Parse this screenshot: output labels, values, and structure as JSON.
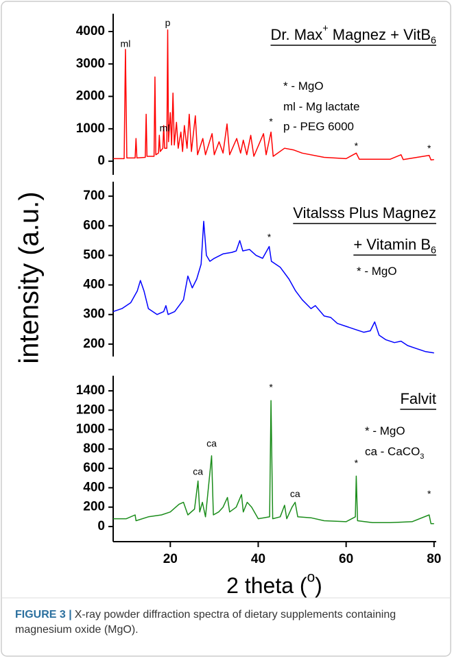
{
  "chart_data": [
    {
      "type": "line",
      "xlim": [
        7,
        80.5
      ],
      "ylim": [
        -420,
        4550
      ],
      "yticks": [
        0,
        1000,
        2000,
        3000,
        4000
      ],
      "title_lines": [
        [
          {
            "text": "Dr. Max"
          },
          {
            "text": "+",
            "shift": "sup"
          },
          {
            "text": " Magnez + VitB"
          },
          {
            "text": "6",
            "shift": "sub"
          }
        ]
      ],
      "underline": true,
      "legend_lines": [
        [
          {
            "text": "* - MgO"
          }
        ],
        [
          {
            "text": "ml - Mg lactate"
          }
        ],
        [
          {
            "text": "p - PEG 6000"
          }
        ]
      ],
      "annotations": [
        {
          "text": "ml",
          "x": 9.8,
          "y": 3600
        },
        {
          "text": "p",
          "x": 19.4,
          "y": 4250
        },
        {
          "text": "ml",
          "x": 18.7,
          "y": 1000
        },
        {
          "text": "*",
          "x": 42.9,
          "y": 1200
        },
        {
          "text": "*",
          "x": 62.3,
          "y": 450
        },
        {
          "text": "*",
          "x": 78.9,
          "y": 380
        }
      ],
      "series": [
        {
          "color": "#ff0000",
          "x": [
            7,
            9.5,
            9.8,
            10.1,
            12,
            12.2,
            12.4,
            14.3,
            14.5,
            14.7,
            16.3,
            16.5,
            16.7,
            17.3,
            17.5,
            17.7,
            18.3,
            18.5,
            18.7,
            19.2,
            19.4,
            19.6,
            20.0,
            20.3,
            20.6,
            20.9,
            21.4,
            21.8,
            22.4,
            22.8,
            23.2,
            23.8,
            24.3,
            24.8,
            25.7,
            26.2,
            27.4,
            28,
            29.5,
            30,
            31.1,
            32,
            32.9,
            33.5,
            35.1,
            36,
            36.6,
            37.4,
            38.3,
            39,
            41.2,
            41.8,
            42.9,
            43.4,
            46,
            48,
            50,
            55,
            60,
            62.3,
            63,
            70,
            72.5,
            73,
            78.9,
            79.3,
            80
          ],
          "values": [
            80,
            80,
            3450,
            100,
            100,
            700,
            100,
            120,
            1450,
            150,
            150,
            2600,
            200,
            250,
            800,
            300,
            400,
            1100,
            400,
            400,
            4050,
            600,
            1500,
            500,
            2100,
            500,
            1200,
            400,
            900,
            300,
            1100,
            400,
            1450,
            300,
            1400,
            200,
            700,
            200,
            850,
            200,
            600,
            250,
            1150,
            200,
            700,
            250,
            650,
            200,
            800,
            150,
            850,
            200,
            900,
            150,
            400,
            350,
            250,
            120,
            80,
            250,
            60,
            60,
            200,
            50,
            180,
            40,
            50
          ]
        }
      ]
    },
    {
      "type": "line",
      "xlim": [
        7,
        80.5
      ],
      "ylim": [
        158,
        749
      ],
      "yticks": [
        200,
        300,
        400,
        500,
        600,
        700
      ],
      "ylabel": "intensity (a.u.)",
      "title_lines": [
        [
          {
            "text": "Vitalsss Plus Magnez"
          }
        ],
        [
          {
            "text": "+ Vitamin B"
          },
          {
            "text": "6",
            "shift": "sub"
          }
        ]
      ],
      "underline": true,
      "legend_lines": [
        [
          {
            "text": "* - MgO"
          }
        ]
      ],
      "annotations": [
        {
          "text": "*",
          "x": 42.5,
          "y": 560
        }
      ],
      "series": [
        {
          "color": "#0000ff",
          "x": [
            7,
            9,
            11,
            12.5,
            13.2,
            14,
            15,
            17,
            18.5,
            19,
            19.5,
            21,
            23,
            24,
            25,
            26,
            27,
            27.6,
            28.2,
            29,
            30,
            32,
            34,
            35,
            35.8,
            36.5,
            38,
            39.5,
            41,
            42.5,
            43,
            45,
            47,
            48.5,
            50,
            52,
            53,
            55,
            56.5,
            58,
            60,
            62,
            64,
            65.5,
            66.5,
            67.5,
            69,
            71,
            72.5,
            74,
            76,
            78,
            80
          ],
          "values": [
            310,
            320,
            340,
            380,
            415,
            380,
            320,
            300,
            310,
            330,
            300,
            310,
            350,
            430,
            390,
            420,
            470,
            615,
            500,
            480,
            490,
            505,
            510,
            515,
            550,
            515,
            520,
            500,
            490,
            530,
            480,
            460,
            420,
            380,
            350,
            320,
            330,
            295,
            290,
            270,
            260,
            250,
            240,
            245,
            275,
            230,
            215,
            205,
            210,
            195,
            185,
            175,
            170
          ]
        }
      ]
    },
    {
      "type": "line",
      "xlim": [
        7,
        80.5
      ],
      "ylim": [
        -156,
        1556
      ],
      "yticks": [
        0,
        200,
        400,
        600,
        800,
        1000,
        1200,
        1400
      ],
      "xticks": [
        20,
        40,
        60,
        80
      ],
      "xlabel": [
        {
          "text": "2 theta ("
        },
        {
          "text": "o",
          "shift": "sup"
        },
        {
          "text": ")"
        }
      ],
      "title_lines": [
        [
          {
            "text": "Falvit"
          }
        ]
      ],
      "underline": true,
      "legend_lines": [
        [
          {
            "text": "* - MgO"
          }
        ],
        [
          {
            "text": "ca - CaCO"
          },
          {
            "text": "3",
            "shift": "sub"
          }
        ]
      ],
      "annotations": [
        {
          "text": "ca",
          "x": 26.3,
          "y": 560
        },
        {
          "text": "ca",
          "x": 29.4,
          "y": 850
        },
        {
          "text": "*",
          "x": 42.9,
          "y": 1430
        },
        {
          "text": "ca",
          "x": 48.4,
          "y": 330
        },
        {
          "text": "*",
          "x": 62.3,
          "y": 650
        },
        {
          "text": "*",
          "x": 78.9,
          "y": 330
        }
      ],
      "series": [
        {
          "color": "#1a8c1a",
          "x": [
            7,
            10,
            12,
            12.2,
            15,
            18,
            20,
            22,
            23,
            24,
            25.5,
            26.3,
            26.7,
            27.3,
            28,
            29.4,
            29.8,
            31,
            32,
            33,
            33.5,
            35,
            36.2,
            36.6,
            37.5,
            38.5,
            40,
            42.6,
            42.9,
            43.3,
            45,
            46,
            46.5,
            47.7,
            48.4,
            49,
            52,
            55,
            60,
            62.1,
            62.3,
            62.6,
            66,
            70,
            75,
            78.9,
            79.3,
            80
          ],
          "values": [
            80,
            80,
            120,
            60,
            100,
            120,
            150,
            230,
            250,
            120,
            180,
            470,
            150,
            250,
            100,
            730,
            120,
            150,
            200,
            300,
            150,
            200,
            330,
            150,
            250,
            200,
            80,
            100,
            1300,
            80,
            100,
            220,
            80,
            200,
            250,
            100,
            90,
            60,
            50,
            100,
            520,
            60,
            40,
            40,
            50,
            120,
            30,
            30
          ]
        }
      ]
    }
  ],
  "caption": {
    "label": "FIGURE 3 |",
    "text": "X-ray powder diffraction spectra of dietary supplements containing magnesium oxide (MgO)."
  }
}
